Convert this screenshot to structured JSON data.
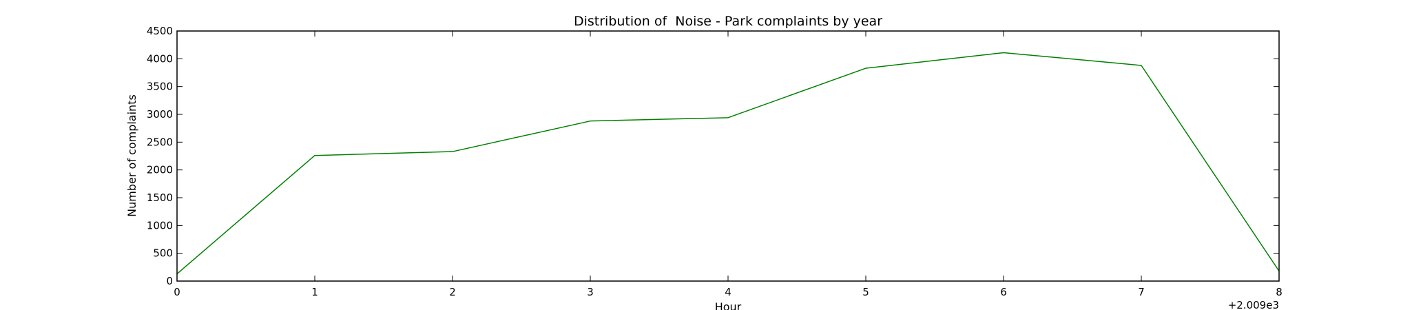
{
  "chart_data": {
    "type": "line",
    "title": "Distribution of  Noise - Park complaints by year",
    "xlabel": "Hour",
    "ylabel": "Number of complaints",
    "x_offset_label": "+2.009e3",
    "x": [
      0,
      1,
      2,
      3,
      4,
      5,
      6,
      7,
      8
    ],
    "x_tick_labels": [
      "0",
      "1",
      "2",
      "3",
      "4",
      "5",
      "6",
      "7",
      "8"
    ],
    "xlim": [
      0,
      8
    ],
    "ylim": [
      0,
      4500
    ],
    "y_ticks": [
      0,
      500,
      1000,
      1500,
      2000,
      2500,
      3000,
      3500,
      4000,
      4500
    ],
    "series": [
      {
        "color": "#008000",
        "values": [
          130,
          2260,
          2330,
          2880,
          2940,
          3830,
          4110,
          3880,
          180
        ]
      }
    ],
    "grid": false,
    "legend": "none"
  }
}
